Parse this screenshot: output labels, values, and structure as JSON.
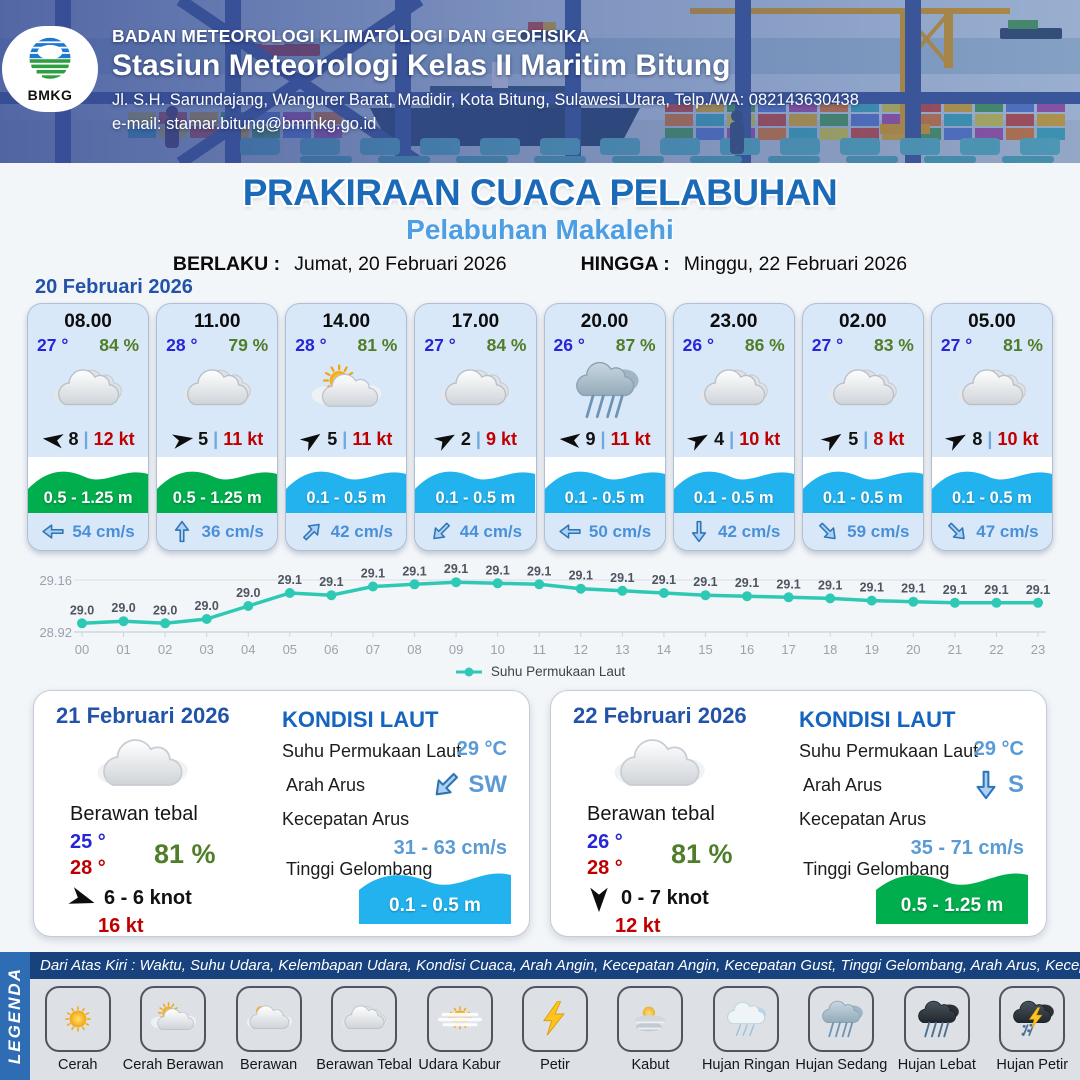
{
  "header": {
    "logo_text": "BMKG",
    "agency": "BADAN METEOROLOGI KLIMATOLOGI DAN GEOFISIKA",
    "station": "Stasiun Meteorologi Kelas II Maritim Bitung",
    "address": "Jl. S.H. Sarundajang, Wangurer Barat, Madidir, Kota Bitung, Sulawesi Utara, Telp./WA: 082143630438",
    "email": "e-mail: stamar.bitung@bmmkg.go.id"
  },
  "title": {
    "main": "PRAKIRAAN CUACA PELABUHAN",
    "subtitle": "Pelabuhan Makalehi",
    "berlaku_label": "BERLAKU :",
    "berlaku_value": "Jumat, 20 Februari 2026",
    "hingga_label": "HINGGA :",
    "hingga_value": "Minggu, 22 Februari 2026"
  },
  "day1": {
    "date": "20 Februari 2026",
    "cards": [
      {
        "time": "08.00",
        "temp": "27 °",
        "humidity": "84 %",
        "icon": "berawan-tebal",
        "wind_speed": "8",
        "divider": "|",
        "gust": "12 kt",
        "wind_deg": 188,
        "wave": "0.5 - 1.25 m",
        "wave_color": "#00ae4d",
        "current": "54 cm/s",
        "current_deg": 180
      },
      {
        "time": "11.00",
        "temp": "28 °",
        "humidity": "79 %",
        "icon": "berawan-tebal",
        "wind_speed": "5",
        "divider": "|",
        "gust": "11 kt",
        "wind_deg": -10,
        "wave": "0.5 - 1.25 m",
        "wave_color": "#00ae4d",
        "current": "36 cm/s",
        "current_deg": -90
      },
      {
        "time": "14.00",
        "temp": "28 °",
        "humidity": "81 %",
        "icon": "cerah-berawan",
        "wind_speed": "5",
        "divider": "|",
        "gust": "11 kt",
        "wind_deg": -35,
        "wave": "0.1 - 0.5 m",
        "wave_color": "#22b3ef",
        "current": "42 cm/s",
        "current_deg": -45
      },
      {
        "time": "17.00",
        "temp": "27 °",
        "humidity": "84 %",
        "icon": "berawan-tebal",
        "wind_speed": "2",
        "divider": "|",
        "gust": "9 kt",
        "wind_deg": -30,
        "wave": "0.1 - 0.5 m",
        "wave_color": "#22b3ef",
        "current": "44 cm/s",
        "current_deg": 135
      },
      {
        "time": "20.00",
        "temp": "26 °",
        "humidity": "87 %",
        "icon": "hujan-sedang",
        "wind_speed": "9",
        "divider": "|",
        "gust": "11 kt",
        "wind_deg": 185,
        "wave": "0.1 - 0.5 m",
        "wave_color": "#22b3ef",
        "current": "50 cm/s",
        "current_deg": 180
      },
      {
        "time": "23.00",
        "temp": "26 °",
        "humidity": "86 %",
        "icon": "berawan-tebal",
        "wind_speed": "4",
        "divider": "|",
        "gust": "10 kt",
        "wind_deg": -30,
        "wave": "0.1 - 0.5 m",
        "wave_color": "#22b3ef",
        "current": "42 cm/s",
        "current_deg": 90
      },
      {
        "time": "02.00",
        "temp": "27 °",
        "humidity": "83 %",
        "icon": "berawan-tebal",
        "wind_speed": "5",
        "divider": "|",
        "gust": "8 kt",
        "wind_deg": -35,
        "wave": "0.1 - 0.5 m",
        "wave_color": "#22b3ef",
        "current": "59 cm/s",
        "current_deg": 45
      },
      {
        "time": "05.00",
        "temp": "27 °",
        "humidity": "81 %",
        "icon": "berawan-tebal",
        "wind_speed": "8",
        "divider": "|",
        "gust": "10 kt",
        "wind_deg": -30,
        "wave": "0.1 - 0.5 m",
        "wave_color": "#22b3ef",
        "current": "47 cm/s",
        "current_deg": 45
      }
    ]
  },
  "chart_data": {
    "type": "line",
    "x": [
      "00",
      "01",
      "02",
      "03",
      "04",
      "05",
      "06",
      "07",
      "08",
      "09",
      "10",
      "11",
      "12",
      "13",
      "14",
      "15",
      "16",
      "17",
      "18",
      "19",
      "20",
      "21",
      "22",
      "23"
    ],
    "series": [
      {
        "name": "Suhu Permukaan Laut",
        "values": [
          28.96,
          28.97,
          28.96,
          28.98,
          29.04,
          29.1,
          29.09,
          29.13,
          29.14,
          29.15,
          29.145,
          29.14,
          29.12,
          29.11,
          29.1,
          29.09,
          29.085,
          29.08,
          29.075,
          29.065,
          29.06,
          29.055,
          29.055,
          29.055
        ],
        "labels": [
          "29.0",
          "29.0",
          "29.0",
          "29.0",
          "29.0",
          "29.1",
          "29.1",
          "29.1",
          "29.1",
          "29.1",
          "29.1",
          "29.1",
          "29.1",
          "29.1",
          "29.1",
          "29.1",
          "29.1",
          "29.1",
          "29.1",
          "29.1",
          "29.1",
          "29.1",
          "29.1",
          "29.1"
        ]
      }
    ],
    "ylim": [
      28.92,
      29.16
    ],
    "yticks": [
      "29.16",
      "28.92"
    ],
    "line_color": "#2ec9b4",
    "grid": true,
    "legend_position": "bottom"
  },
  "days": [
    {
      "date": "21 Februari 2026",
      "icon": "berawan-putih",
      "condition": "Berawan tebal",
      "temp_min": "25 °",
      "temp_max": "28 °",
      "humidity": "81 %",
      "wind": "6  - 6 knot",
      "wind_deg": 18,
      "gust": "16 kt",
      "sea": {
        "title": "KONDISI LAUT",
        "sst_label": "Suhu Permukaan Laut",
        "sst": "29 °C",
        "dir_label": "Arah Arus",
        "dir": "SW",
        "dir_deg": 135,
        "speed_label": "Kecepatan Arus",
        "speed": "31 - 63 cm/s",
        "wave_label": "Tinggi Gelombang",
        "wave": "0.1 - 0.5 m",
        "wave_color": "#22b3ef"
      }
    },
    {
      "date": "22 Februari 2026",
      "icon": "berawan-putih",
      "condition": "Berawan tebal",
      "temp_min": "26 °",
      "temp_max": "28 °",
      "humidity": "81 %",
      "wind": "0  - 7 knot",
      "wind_deg": 90,
      "gust": "12 kt",
      "sea": {
        "title": "KONDISI LAUT",
        "sst_label": "Suhu Permukaan Laut",
        "sst": "29 °C",
        "dir_label": "Arah Arus",
        "dir": "S",
        "dir_deg": 90,
        "speed_label": "Kecepatan Arus",
        "speed": "35 - 71 cm/s",
        "wave_label": "Tinggi Gelombang",
        "wave": "0.5 - 1.25 m",
        "wave_color": "#00ae4d"
      }
    }
  ],
  "legend": {
    "title": "LEGENDA",
    "note": "Dari Atas Kiri : Waktu, Suhu Udara, Kelembapan Udara, Kondisi Cuaca, Arah Angin, Kecepatan Angin, Kecepatan Gust, Tinggi Gelombang, Arah Arus, Kecepatan Arus",
    "items": [
      {
        "label": "Cerah",
        "icon": "cerah"
      },
      {
        "label": "Cerah Berawan",
        "icon": "cerah-berawan"
      },
      {
        "label": "Berawan",
        "icon": "berawan"
      },
      {
        "label": "Berawan Tebal",
        "icon": "berawan-tebal"
      },
      {
        "label": "Udara Kabur",
        "icon": "udara-kabur"
      },
      {
        "label": "Petir",
        "icon": "petir"
      },
      {
        "label": "Kabut",
        "icon": "kabut"
      },
      {
        "label": "Hujan Ringan",
        "icon": "hujan-ringan"
      },
      {
        "label": "Hujan Sedang",
        "icon": "hujan-sedang"
      },
      {
        "label": "Hujan Lebat",
        "icon": "hujan-lebat"
      },
      {
        "label": "Hujan Petir",
        "icon": "hujan-petir"
      }
    ]
  },
  "colors": {
    "title_blue": "#1a6ab8",
    "subtitle_blue": "#4d9ee2",
    "date_blue": "#2353a8",
    "temp_blue": "#2626d8",
    "humidity_green": "#507d28",
    "gust_red": "#c00000",
    "sea_value_blue": "#5b9bd5",
    "wave_green": "#00ae4d",
    "wave_blue": "#22b3ef",
    "chart_teal": "#2ec9b4"
  }
}
